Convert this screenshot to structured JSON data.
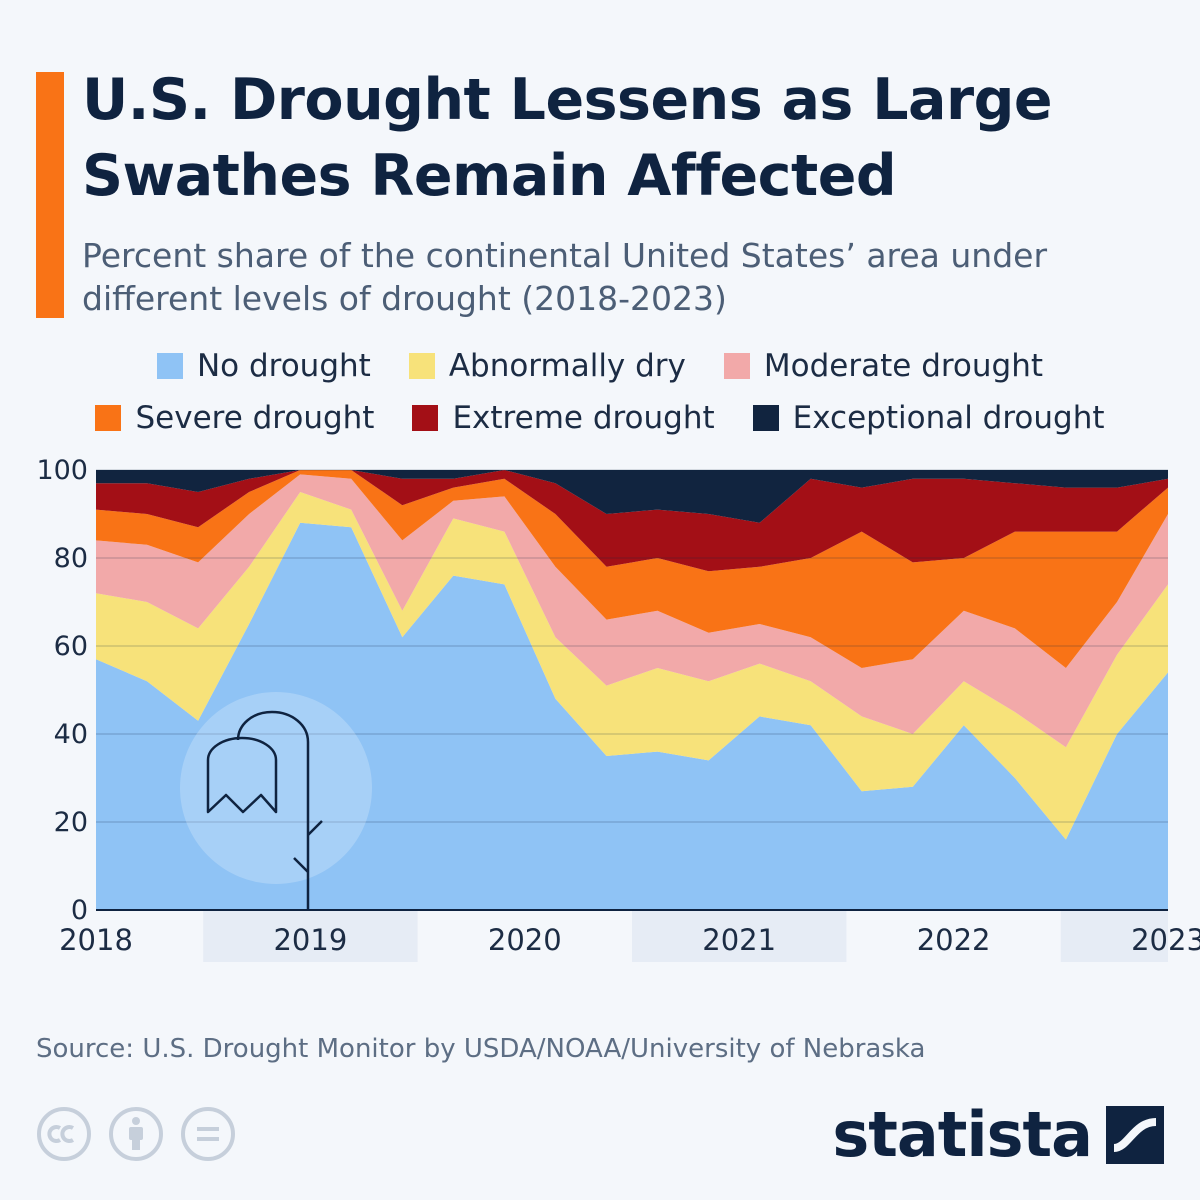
{
  "header": {
    "title": "U.S. Drought Lessens as Large Swathes Remain Affected",
    "subtitle": "Percent share of the continental United States’ area under different levels of drought (2018-2023)"
  },
  "colors": {
    "accent": "#f97316",
    "no_drought": "#8fc3f5",
    "abnormally_dry": "#f7e27a",
    "moderate_drought": "#f2a9a9",
    "severe_drought": "#f97316",
    "extreme_drought": "#a30f16",
    "exceptional_drought": "#11243f"
  },
  "legend": [
    {
      "label": "No drought",
      "color": "#8fc3f5"
    },
    {
      "label": "Abnormally dry",
      "color": "#f7e27a"
    },
    {
      "label": "Moderate drought",
      "color": "#f2a9a9"
    },
    {
      "label": "Severe drought",
      "color": "#f97316"
    },
    {
      "label": "Extreme drought",
      "color": "#a30f16"
    },
    {
      "label": "Exceptional drought",
      "color": "#11243f"
    }
  ],
  "chart_data": {
    "type": "area",
    "stacking": "cumulative",
    "x": [
      2018.0,
      2018.25,
      2018.5,
      2018.75,
      2019.0,
      2019.25,
      2019.5,
      2019.75,
      2020.0,
      2020.25,
      2020.5,
      2020.75,
      2021.0,
      2021.25,
      2021.5,
      2021.75,
      2022.0,
      2022.25,
      2022.5,
      2022.75,
      2023.0,
      2023.25
    ],
    "categories": [
      "2018",
      "2019",
      "2020",
      "2021",
      "2022",
      "2023"
    ],
    "ylim": [
      0,
      100
    ],
    "yticks": [
      0,
      20,
      40,
      60,
      80,
      100
    ],
    "grid": true,
    "legend_position": "top",
    "series": [
      {
        "name": "No drought",
        "values": [
          57,
          52,
          43,
          65,
          88,
          87,
          62,
          76,
          74,
          48,
          35,
          36,
          34,
          44,
          42,
          27,
          28,
          42,
          30,
          16,
          40,
          54
        ]
      },
      {
        "name": "Abnormally dry",
        "values": [
          72,
          70,
          64,
          78,
          95,
          91,
          68,
          89,
          86,
          62,
          51,
          55,
          52,
          56,
          52,
          44,
          40,
          52,
          45,
          37,
          58,
          74
        ]
      },
      {
        "name": "Moderate drought",
        "values": [
          84,
          83,
          79,
          90,
          99,
          98,
          84,
          93,
          94,
          78,
          66,
          68,
          63,
          65,
          62,
          55,
          57,
          68,
          64,
          55,
          70,
          90
        ]
      },
      {
        "name": "Severe drought",
        "values": [
          91,
          90,
          87,
          95,
          100,
          100,
          92,
          96,
          98,
          90,
          78,
          80,
          77,
          78,
          80,
          86,
          79,
          80,
          86,
          86,
          86,
          96
        ]
      },
      {
        "name": "Extreme drought",
        "values": [
          97,
          97,
          95,
          98,
          100,
          100,
          98,
          98,
          100,
          97,
          90,
          91,
          90,
          88,
          98,
          96,
          98,
          98,
          97,
          96,
          96,
          98
        ]
      },
      {
        "name": "Exceptional drought",
        "values": [
          100,
          100,
          100,
          100,
          100,
          100,
          100,
          100,
          100,
          100,
          100,
          100,
          100,
          100,
          100,
          100,
          100,
          100,
          100,
          100,
          100,
          100
        ]
      }
    ]
  },
  "source": "Source: U.S. Drought Monitor by USDA/NOAA/University of Nebraska",
  "icons": [
    "creative-commons-icon",
    "attribution-icon",
    "no-derivatives-icon",
    "statista-logo-icon"
  ],
  "brand": "statista"
}
